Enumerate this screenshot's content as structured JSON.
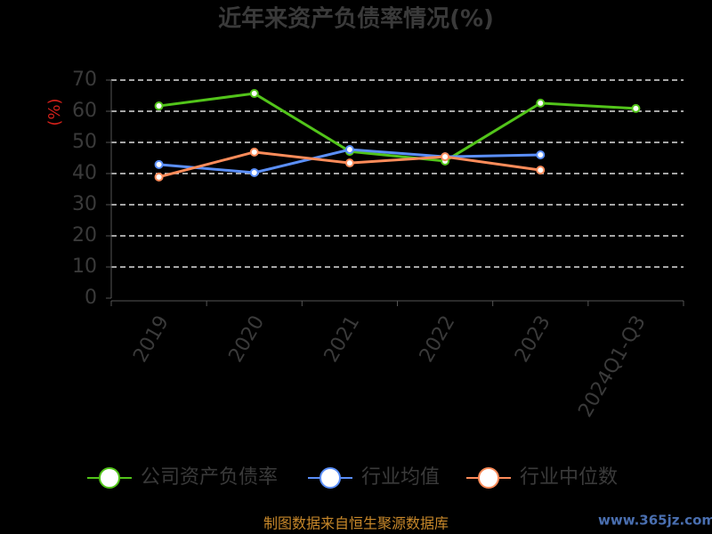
{
  "chart_data": {
    "type": "line",
    "title": "近年来资产负债率情况(%)",
    "y_label": "(%)",
    "categories": [
      "2019",
      "2020",
      "2021",
      "2022",
      "2023",
      "2024Q1-Q3"
    ],
    "series": [
      {
        "name": "公司资产负债率",
        "color": "#52c41a",
        "values": [
          61.7,
          65.7,
          47.1,
          44.0,
          62.6,
          60.9
        ]
      },
      {
        "name": "行业均值",
        "color": "#5b8ff9",
        "values": [
          42.9,
          40.3,
          47.7,
          45.4,
          46.0,
          null
        ]
      },
      {
        "name": "行业中位数",
        "color": "#ff8c5a",
        "values": [
          38.9,
          46.9,
          43.4,
          45.4,
          41.1,
          null
        ]
      }
    ],
    "ylim": [
      0,
      70
    ],
    "yticks": [
      0,
      10,
      20,
      30,
      40,
      50,
      60,
      70
    ],
    "grid": true,
    "source": "制图数据来自恒生聚源数据库",
    "watermark": "www.365jz.com"
  }
}
